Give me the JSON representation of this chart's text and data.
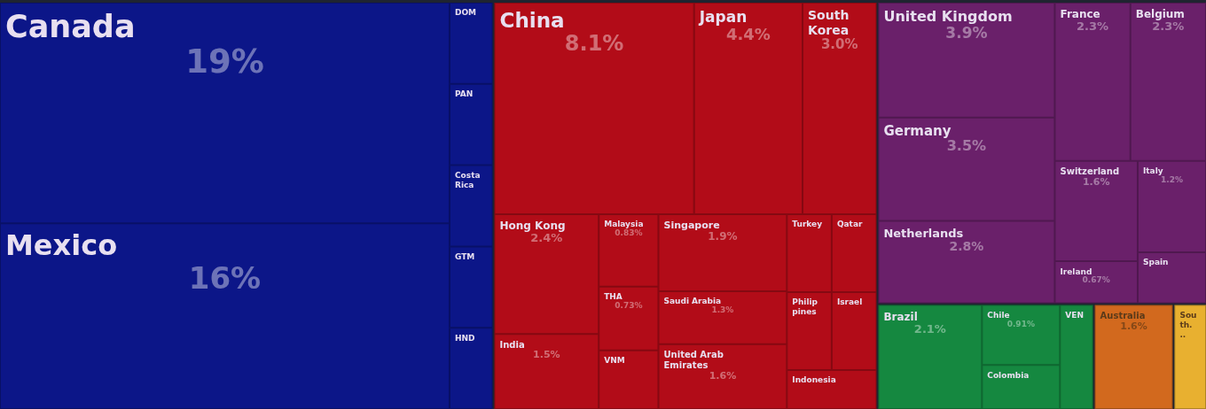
{
  "chart_data": {
    "type": "other",
    "categories": [
      "Canada",
      "Mexico",
      "DOM",
      "PAN",
      "Costa Rica",
      "GTM",
      "HND",
      "China",
      "Japan",
      "South Korea",
      "Hong Kong",
      "India",
      "Malaysia",
      "THA",
      "VNM",
      "Singapore",
      "Saudi Arabia",
      "United Arab Emirates",
      "Turkey",
      "Qatar",
      "Philippines",
      "Israel",
      "Indonesia",
      "United Kingdom",
      "Germany",
      "Netherlands",
      "France",
      "Belgium",
      "Switzerland",
      "Ireland",
      "Italy",
      "Spain",
      "Brazil",
      "Chile",
      "Colombia",
      "VEN",
      "Australia",
      "South..."
    ],
    "values": [
      19,
      16,
      null,
      null,
      null,
      null,
      null,
      8.1,
      4.4,
      3.0,
      2.4,
      1.5,
      0.83,
      0.73,
      null,
      1.9,
      1.3,
      1.6,
      null,
      null,
      null,
      null,
      null,
      3.9,
      3.5,
      2.8,
      2.3,
      2.3,
      1.6,
      0.67,
      1.2,
      null,
      2.1,
      0.91,
      null,
      null,
      1.6,
      null
    ],
    "value_labels": [
      "19%",
      "16%",
      null,
      null,
      null,
      null,
      null,
      "8.1%",
      "4.4%",
      "3.0%",
      "2.4%",
      "1.5%",
      "0.83%",
      "0.73%",
      null,
      "1.9%",
      "1.3%",
      "1.6%",
      null,
      null,
      null,
      null,
      null,
      "3.9%",
      "3.5%",
      "2.8%",
      "2.3%",
      "2.3%",
      "1.6%",
      "0.67%",
      "1.2%",
      null,
      "2.1%",
      "0.91%",
      null,
      null,
      "1.6%",
      null
    ],
    "colors": [
      "#0c1688",
      "#0c1688",
      "#0c1688",
      "#0c1688",
      "#0c1688",
      "#0c1688",
      "#0c1688",
      "#b20c18",
      "#b20c18",
      "#b20c18",
      "#b20c18",
      "#b20c18",
      "#b20c18",
      "#b20c18",
      "#b20c18",
      "#b20c18",
      "#b20c18",
      "#b20c18",
      "#b20c18",
      "#b20c18",
      "#b20c18",
      "#b20c18",
      "#b20c18",
      "#6a206a",
      "#6a206a",
      "#6a206a",
      "#6a206a",
      "#6a206a",
      "#6a206a",
      "#6a206a",
      "#6a206a",
      "#6a206a",
      "#158840",
      "#158840",
      "#158840",
      "#158840",
      "#d2691e",
      "#e8b030"
    ]
  }
}
